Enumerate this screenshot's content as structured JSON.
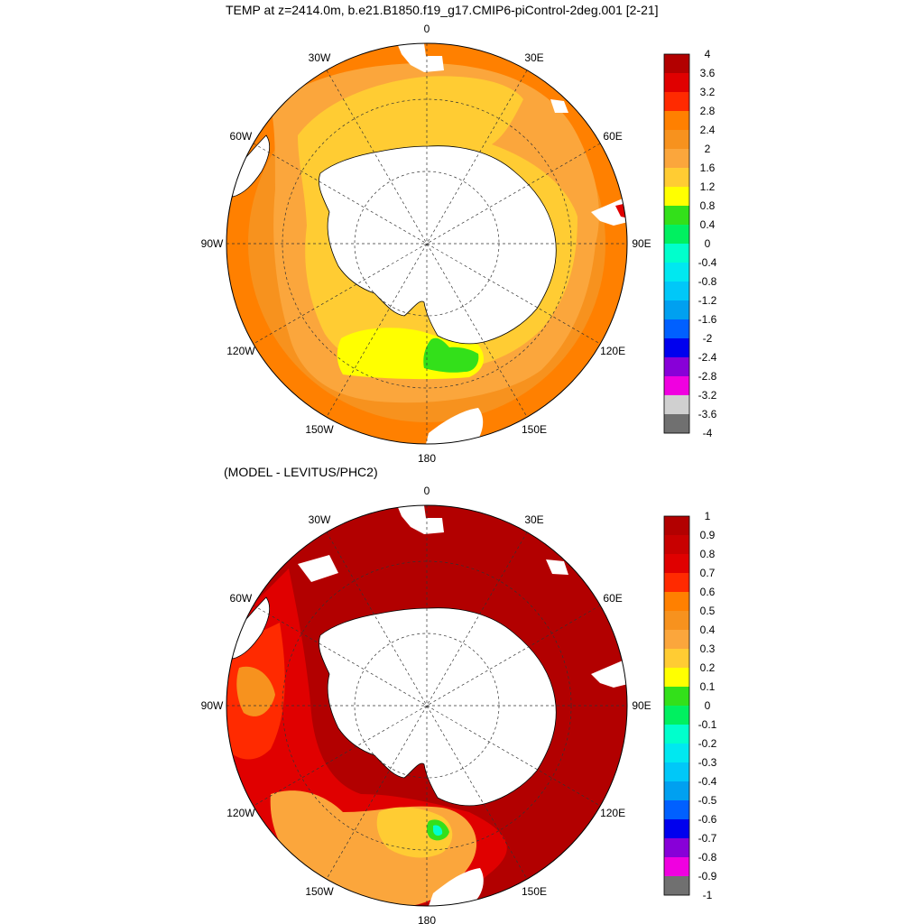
{
  "top_panel": {
    "title": "TEMP at z=2414.0m, b.e21.B1850.f19_g17.CMIP6-piControl-2deg.001 [2-21]",
    "fill_level": "1.6",
    "colorbar": {
      "labels": [
        "4",
        "3.6",
        "3.2",
        "2.8",
        "2.4",
        "2",
        "1.6",
        "1.2",
        "0.8",
        "0.4",
        "0",
        "-0.4",
        "-0.8",
        "-1.2",
        "-1.6",
        "-2",
        "-2.4",
        "-2.8",
        "-3.2",
        "-3.6",
        "-4"
      ],
      "colors": [
        "#b20000",
        "#e00000",
        "#ff2a00",
        "#ff8000",
        "#f7921e",
        "#fba63c",
        "#ffcc33",
        "#ffff00",
        "#33e01a",
        "#00f060",
        "#00ffcc",
        "#00e8f0",
        "#00c8f8",
        "#00a0f0",
        "#0060ff",
        "#0000ee",
        "#8800d8",
        "#f000e0",
        "#d0d0d0",
        "#707070"
      ]
    }
  },
  "bottom_panel": {
    "title": "(MODEL - LEVITUS/PHC2)",
    "fill_level": "0.9",
    "colorbar": {
      "labels": [
        "1",
        "0.9",
        "0.8",
        "0.7",
        "0.6",
        "0.5",
        "0.4",
        "0.3",
        "0.2",
        "0.1",
        "0",
        "-0.1",
        "-0.2",
        "-0.3",
        "-0.4",
        "-0.5",
        "-0.6",
        "-0.7",
        "-0.8",
        "-0.9",
        "-1"
      ],
      "colors": [
        "#b20000",
        "#c80000",
        "#e00000",
        "#ff2a00",
        "#ff8000",
        "#f7921e",
        "#fba63c",
        "#ffcc33",
        "#ffff00",
        "#33e01a",
        "#00f060",
        "#00ffcc",
        "#00e8f0",
        "#00c8f8",
        "#00a0f0",
        "#0060ff",
        "#0000ee",
        "#8800d8",
        "#f000e0",
        "#707070"
      ]
    }
  },
  "longitude_labels": [
    {
      "lon": 0,
      "text": "0"
    },
    {
      "lon": 30,
      "text": "30E"
    },
    {
      "lon": 60,
      "text": "60E"
    },
    {
      "lon": 90,
      "text": "90E"
    },
    {
      "lon": 120,
      "text": "120E"
    },
    {
      "lon": 150,
      "text": "150E"
    },
    {
      "lon": 180,
      "text": "180"
    },
    {
      "lon": -150,
      "text": "150W"
    },
    {
      "lon": -120,
      "text": "120W"
    },
    {
      "lon": -90,
      "text": "90W"
    },
    {
      "lon": -60,
      "text": "60W"
    },
    {
      "lon": -30,
      "text": "30W"
    }
  ],
  "colors": {
    "land": "#ffffff",
    "outline": "#000000"
  }
}
